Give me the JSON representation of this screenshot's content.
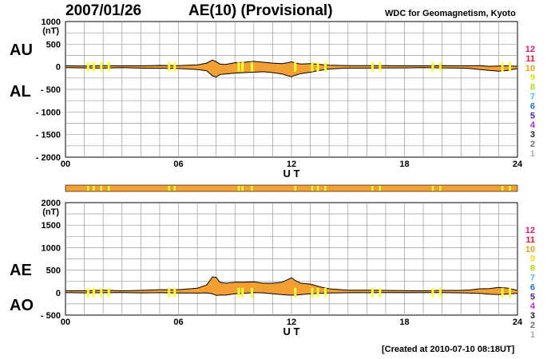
{
  "header": {
    "date": "2007/01/26",
    "title": "AE(10) (Provisional)",
    "source": "WDC for Geomagnetism, Kyoto"
  },
  "footer": {
    "created": "[Created at 2010-07-10 08:18UT]"
  },
  "panel_labels": {
    "au": "AU",
    "al": "AL",
    "ae": "AE",
    "ao": "AO"
  },
  "legend": {
    "numbers": [
      "12",
      "11",
      "10",
      "9",
      "8",
      "7",
      "6",
      "5",
      "4",
      "3",
      "2",
      "1"
    ],
    "colors": [
      "#e8177e",
      "#e8172b",
      "#f0a010",
      "#f0e000",
      "#a8e000",
      "#40c8e0",
      "#2070f0",
      "#4020c0",
      "#c020e0",
      "#202020",
      "#707070",
      "#b0b0b0"
    ]
  },
  "colors": {
    "fill": "#f3a032",
    "quiet": "#ffff30",
    "strip": "#f3a032"
  },
  "chart_data": [
    {
      "type": "area",
      "title": "AU / AL",
      "xlabel": "U T",
      "ylabel": "(nT)",
      "xlim": [
        0,
        24
      ],
      "ylim": [
        -2000,
        1000
      ],
      "xticks": [
        "00",
        "06",
        "12",
        "18",
        "24"
      ],
      "yticks": [
        "1000",
        "500",
        "0",
        "- 500",
        "- 1000",
        "- 1500",
        "- 2000"
      ],
      "ytick_values": [
        1000,
        500,
        0,
        -500,
        -1000,
        -1500,
        -2000
      ],
      "x": [
        0,
        1,
        2,
        3,
        4,
        5,
        6,
        7,
        7.5,
        7.8,
        8,
        8.2,
        8.5,
        9,
        9.5,
        10,
        10.5,
        11,
        11.5,
        11.8,
        12,
        12.2,
        12.5,
        13,
        13.5,
        14,
        14.5,
        15,
        16,
        17,
        18,
        19,
        20,
        21,
        21.5,
        22,
        22.5,
        23,
        23.5,
        24
      ],
      "series": [
        {
          "name": "AU",
          "values": [
            20,
            15,
            25,
            20,
            20,
            30,
            25,
            40,
            80,
            150,
            110,
            60,
            50,
            90,
            100,
            120,
            100,
            80,
            70,
            90,
            110,
            80,
            60,
            70,
            50,
            35,
            30,
            25,
            25,
            25,
            20,
            20,
            25,
            20,
            20,
            25,
            10,
            15,
            20,
            10
          ]
        },
        {
          "name": "AL",
          "values": [
            -20,
            -25,
            -30,
            -20,
            -30,
            -35,
            -40,
            -60,
            -90,
            -200,
            -230,
            -170,
            -160,
            -140,
            -130,
            -120,
            -110,
            -130,
            -160,
            -200,
            -220,
            -190,
            -150,
            -120,
            -80,
            -50,
            -40,
            -30,
            -30,
            -25,
            -25,
            -20,
            -25,
            -30,
            -40,
            -60,
            -80,
            -100,
            -80,
            -40
          ]
        }
      ]
    },
    {
      "type": "area",
      "title": "AE / AO",
      "xlabel": "U T",
      "ylabel": "(nT)",
      "xlim": [
        0,
        24
      ],
      "ylim": [
        -500,
        2000
      ],
      "xticks": [
        "00",
        "06",
        "12",
        "18",
        "24"
      ],
      "yticks": [
        "2000",
        "1500",
        "1000",
        "500",
        "0",
        "- 500"
      ],
      "ytick_values": [
        2000,
        1500,
        1000,
        500,
        0,
        -500
      ],
      "x": [
        0,
        1,
        2,
        3,
        4,
        5,
        6,
        7,
        7.5,
        7.8,
        8,
        8.2,
        8.5,
        9,
        9.5,
        10,
        10.5,
        11,
        11.5,
        11.8,
        12,
        12.2,
        12.5,
        13,
        13.5,
        14,
        14.5,
        15,
        16,
        17,
        18,
        19,
        20,
        21,
        21.5,
        22,
        22.5,
        23,
        23.5,
        24
      ],
      "series": [
        {
          "name": "AE",
          "values": [
            40,
            40,
            55,
            40,
            50,
            65,
            65,
            100,
            170,
            350,
            340,
            230,
            210,
            230,
            230,
            240,
            210,
            210,
            230,
            290,
            330,
            270,
            210,
            190,
            130,
            85,
            70,
            55,
            55,
            50,
            45,
            40,
            50,
            50,
            60,
            85,
            90,
            115,
            100,
            50
          ]
        },
        {
          "name": "AO",
          "values": [
            0,
            -5,
            -2,
            0,
            -5,
            -2,
            -7,
            -10,
            -5,
            -25,
            -60,
            -55,
            -55,
            -25,
            -15,
            0,
            -5,
            -25,
            -45,
            -55,
            -55,
            -55,
            -45,
            -25,
            -15,
            -8,
            -5,
            -2,
            -2,
            0,
            -2,
            0,
            0,
            -5,
            -10,
            -18,
            -35,
            -42,
            -30,
            -15
          ]
        }
      ]
    }
  ],
  "strip": {
    "quiet_hours": [
      1.2,
      1.5,
      1.9,
      2.3,
      5.5,
      5.8,
      9.2,
      9.4,
      9.9,
      12.2,
      13.1,
      13.4,
      13.8,
      16.3,
      16.7,
      19.5,
      19.9,
      23.2,
      23.6
    ]
  }
}
